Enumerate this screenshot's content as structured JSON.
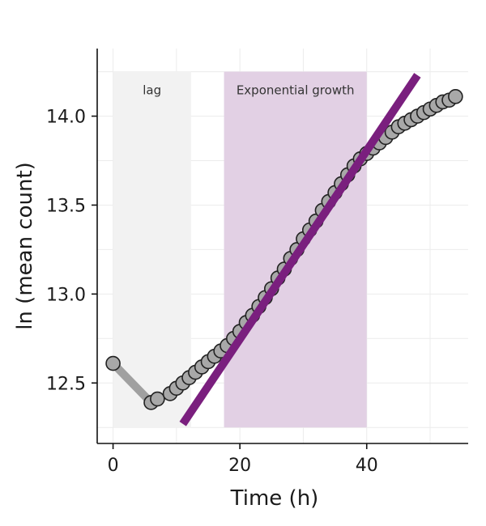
{
  "chart_data": {
    "type": "scatter",
    "xlabel": "Time (h)",
    "ylabel": "ln (mean count)",
    "xlim": [
      -2.5,
      56
    ],
    "ylim": [
      12.16,
      14.38
    ],
    "xticks": [
      0,
      20,
      40
    ],
    "yticks": [
      12.5,
      13.0,
      13.5,
      14.0
    ],
    "xtick_labels": [
      "0",
      "20",
      "40"
    ],
    "ytick_labels": [
      "12.5",
      "13.0",
      "13.5",
      "14.0"
    ],
    "grid": true,
    "regions": [
      {
        "label": "lag",
        "x_start": 0,
        "x_end": 12.3,
        "y_start": 12.25,
        "y_end": 14.25,
        "color": "#f2f2f2"
      },
      {
        "label": "Exponential growth",
        "x_start": 17.5,
        "x_end": 40,
        "y_start": 12.25,
        "y_end": 14.25,
        "color": "#e2d0e4"
      }
    ],
    "lag_segment": {
      "x": [
        0,
        6
      ],
      "y": [
        12.61,
        12.39
      ],
      "color": "#a0a0a0"
    },
    "fit_line": {
      "x": [
        11,
        48
      ],
      "y": [
        12.27,
        14.23
      ],
      "color": "#7a1f7e"
    },
    "points": {
      "x": [
        0,
        6,
        7,
        9,
        10,
        11,
        12,
        13,
        14,
        15,
        16,
        17,
        18,
        19,
        20,
        21,
        22,
        23,
        24,
        25,
        26,
        27,
        28,
        29,
        30,
        31,
        32,
        33,
        34,
        35,
        36,
        37,
        38,
        39,
        40,
        41,
        42,
        43,
        44,
        45,
        46,
        47,
        48,
        49,
        50,
        51,
        52,
        53,
        54
      ],
      "y": [
        12.61,
        12.39,
        12.41,
        12.44,
        12.47,
        12.5,
        12.53,
        12.56,
        12.59,
        12.62,
        12.65,
        12.68,
        12.71,
        12.75,
        12.79,
        12.84,
        12.88,
        12.93,
        12.98,
        13.03,
        13.09,
        13.14,
        13.2,
        13.25,
        13.31,
        13.36,
        13.41,
        13.47,
        13.52,
        13.57,
        13.62,
        13.67,
        13.72,
        13.76,
        13.79,
        13.82,
        13.85,
        13.88,
        13.91,
        13.94,
        13.96,
        13.98,
        14.0,
        14.02,
        14.04,
        14.06,
        14.08,
        14.09,
        14.11
      ],
      "fill": "#a8a8a8",
      "stroke": "#222222"
    }
  }
}
